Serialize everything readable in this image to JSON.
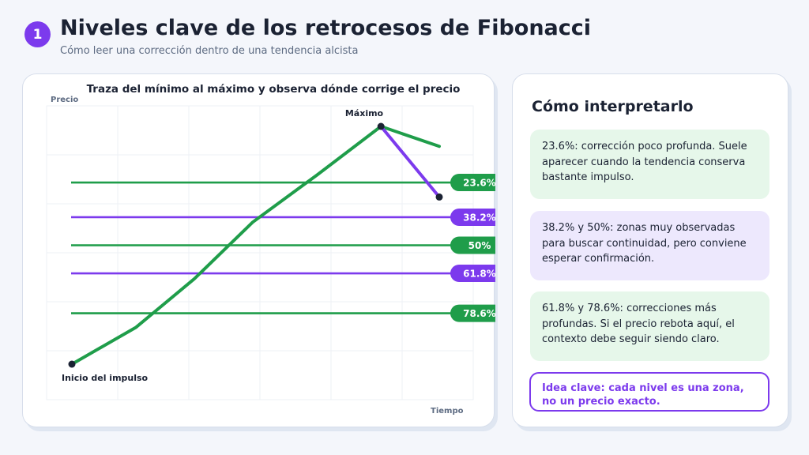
{
  "header": {
    "step_number": "1",
    "title": "Niveles clave de los retrocesos de Fibonacci",
    "subtitle": "Cómo leer una corrección dentro de una tendencia alcista"
  },
  "chart": {
    "title": "Traza del mínimo al máximo y observa dónde corrige el precio",
    "y_axis_label": "Precio",
    "x_axis_label": "Tiempo",
    "peak_label": "Máximo",
    "start_label": "Inicio del impulso"
  },
  "chart_data": {
    "type": "line",
    "title": "Traza del mínimo al máximo y observa dónde corrige el precio",
    "xlabel": "Tiempo",
    "ylabel": "Precio",
    "grid": true,
    "price_path": {
      "x": [
        0,
        1.1,
        2.1,
        3.1,
        4.2,
        5.3,
        6.3
      ],
      "y": [
        0,
        15.5,
        35.9,
        59.7,
        79.5,
        100,
        91.6
      ]
    },
    "retracement_path": {
      "x": [
        5.3,
        6.3
      ],
      "y": [
        100,
        70.3
      ]
    },
    "levels": [
      {
        "label": "23.6%",
        "value": 76.4,
        "color": "#1f9d4a"
      },
      {
        "label": "38.2%",
        "value": 61.8,
        "color": "#7c3aed"
      },
      {
        "label": "50%",
        "value": 50,
        "color": "#1f9d4a"
      },
      {
        "label": "61.8%",
        "value": 38.2,
        "color": "#7c3aed"
      },
      {
        "label": "78.6%",
        "value": 21.4,
        "color": "#1f9d4a"
      }
    ],
    "colors": {
      "green": "#1f9d4a",
      "purple": "#7c3aed",
      "point": "#1b2233"
    }
  },
  "sidebar": {
    "title": "Cómo interpretarlo",
    "notes": [
      {
        "text": "23.6%: corrección poco profunda. Suele aparecer cuando la tendencia conserva bastante impulso.",
        "color": "green"
      },
      {
        "text": "38.2% y 50%: zonas muy observadas para buscar continuidad, pero conviene esperar confirmación.",
        "color": "purple"
      },
      {
        "text": "61.8% y 78.6%: correcciones más profundas. Si el precio rebota aquí, el contexto debe seguir siendo claro.",
        "color": "green"
      }
    ],
    "key_idea": "Idea clave: cada nivel es una zona, no un precio exacto."
  }
}
